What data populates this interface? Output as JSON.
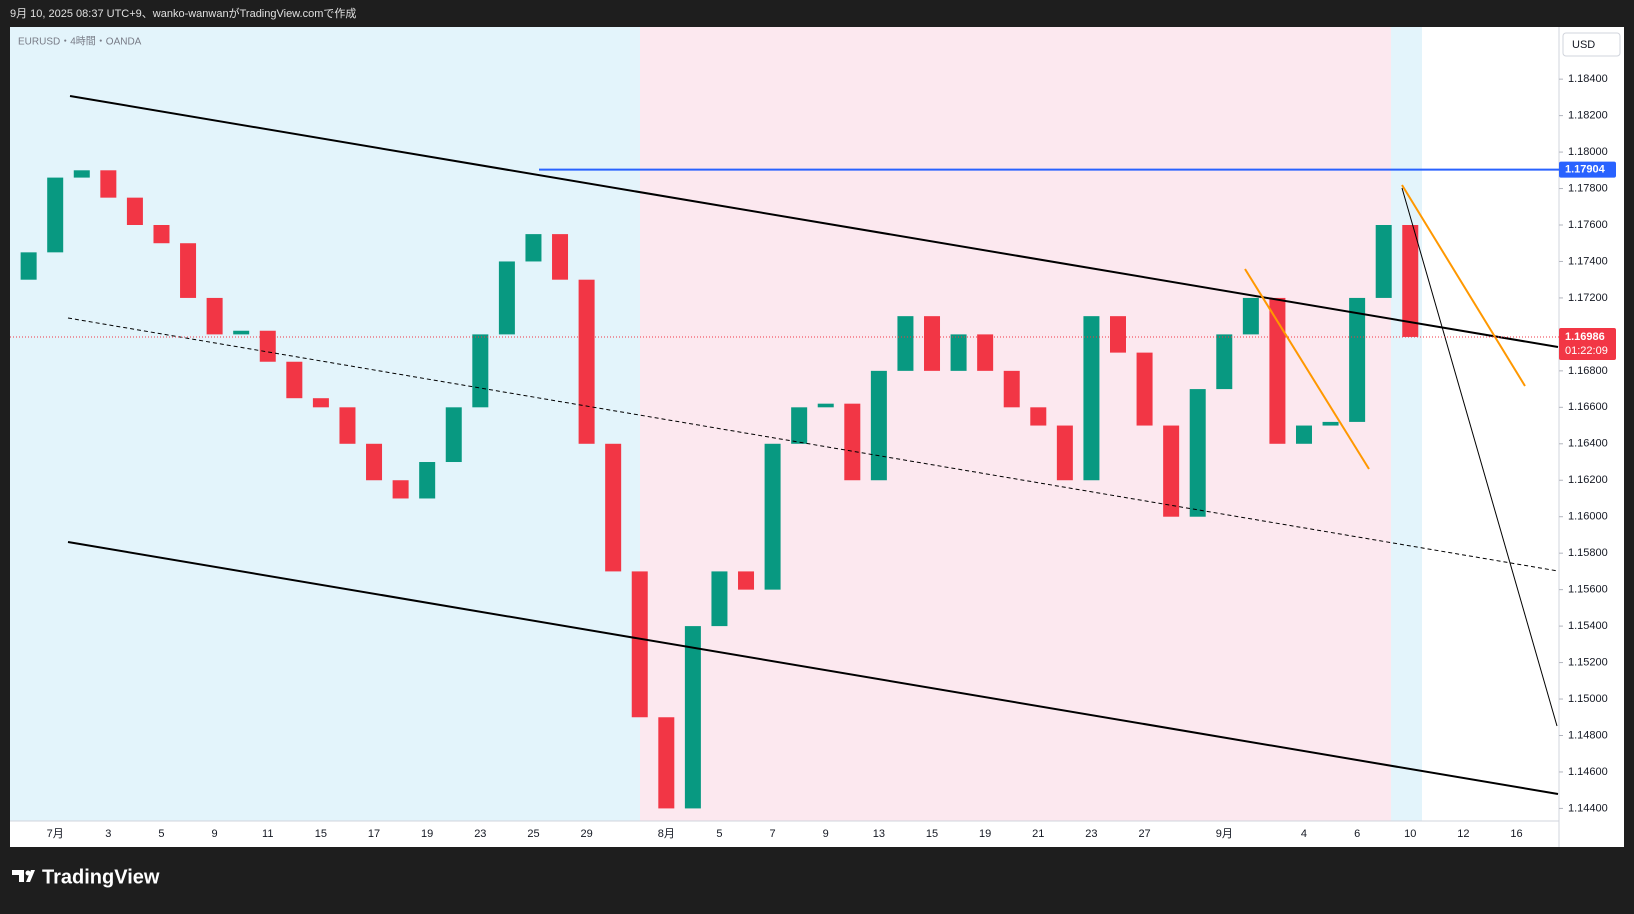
{
  "header": {
    "title": "9月 10, 2025 08:37 UTC+9、wanko-wanwanがTradingView.comで作成"
  },
  "footer": {
    "brand": "TradingView"
  },
  "chart_data": {
    "type": "candlestick",
    "title": "EURUSD・4時間・OANDA",
    "axis_unit": "USD",
    "categories": [
      null,
      "7月",
      null,
      "3",
      null,
      "5",
      null,
      "9",
      null,
      "11",
      null,
      "15",
      null,
      "17",
      null,
      "19",
      null,
      "23",
      null,
      "25",
      null,
      "29",
      null,
      null,
      "8月",
      null,
      "5",
      null,
      "7",
      null,
      "9",
      null,
      "13",
      null,
      "15",
      null,
      "19",
      null,
      "21",
      null,
      "23",
      null,
      "27",
      null,
      null,
      "9月",
      null,
      null,
      "4",
      null,
      "6",
      null,
      "10",
      null,
      "12",
      null,
      "16"
    ],
    "open": [
      1.173,
      1.1745,
      1.1786,
      1.179,
      1.1775,
      1.176,
      1.175,
      1.172,
      1.17,
      1.1702,
      1.1685,
      1.1665,
      1.166,
      1.164,
      1.162,
      1.161,
      1.163,
      1.166,
      1.17,
      1.174,
      1.1755,
      1.173,
      1.164,
      1.157,
      1.149,
      1.144,
      1.154,
      1.157,
      1.156,
      1.164,
      1.166,
      1.1662,
      1.162,
      1.168,
      1.171,
      1.168,
      1.17,
      1.168,
      1.166,
      1.165,
      1.162,
      1.171,
      1.169,
      1.165,
      1.16,
      1.167,
      1.17,
      1.172,
      1.164,
      1.165,
      1.1652,
      1.172,
      1.176,
      null,
      null,
      null,
      null
    ],
    "close": [
      1.1745,
      1.1786,
      1.179,
      1.1775,
      1.176,
      1.175,
      1.172,
      1.17,
      1.1702,
      1.1685,
      1.1665,
      1.166,
      1.164,
      1.162,
      1.161,
      1.163,
      1.166,
      1.17,
      1.174,
      1.1755,
      1.173,
      1.164,
      1.157,
      1.149,
      1.144,
      1.154,
      1.157,
      1.156,
      1.164,
      1.166,
      1.1662,
      1.162,
      1.168,
      1.171,
      1.168,
      1.17,
      1.168,
      1.166,
      1.165,
      1.162,
      1.171,
      1.169,
      1.165,
      1.16,
      1.167,
      1.17,
      1.172,
      1.164,
      1.165,
      1.1652,
      1.172,
      1.176,
      1.16986,
      null,
      null,
      null,
      null
    ],
    "up_color": "#089981",
    "down_color": "#f23645",
    "ylim": [
      1.14331,
      1.18686
    ],
    "yticks": [
      {
        "value": 1.184,
        "label": "1.18400"
      },
      {
        "value": 1.182,
        "label": "1.18200"
      },
      {
        "value": 1.18,
        "label": "1.18000"
      },
      {
        "value": 1.178,
        "label": "1.17800"
      },
      {
        "value": 1.176,
        "label": "1.17600"
      },
      {
        "value": 1.174,
        "label": "1.17400"
      },
      {
        "value": 1.172,
        "label": "1.17200"
      },
      {
        "value": 1.17,
        "label": "1.17000"
      },
      {
        "value": 1.168,
        "label": "1.16800"
      },
      {
        "value": 1.166,
        "label": "1.16600"
      },
      {
        "value": 1.164,
        "label": "1.16400"
      },
      {
        "value": 1.162,
        "label": "1.16200"
      },
      {
        "value": 1.16,
        "label": "1.16000"
      },
      {
        "value": 1.158,
        "label": "1.15800"
      },
      {
        "value": 1.156,
        "label": "1.15600"
      },
      {
        "value": 1.154,
        "label": "1.15400"
      },
      {
        "value": 1.152,
        "label": "1.15200"
      },
      {
        "value": 1.15,
        "label": "1.15000"
      },
      {
        "value": 1.148,
        "label": "1.14800"
      },
      {
        "value": 1.146,
        "label": "1.14600"
      },
      {
        "value": 1.144,
        "label": "1.14400"
      }
    ],
    "hline": 1.17904,
    "hline_color": "#2962ff",
    "last_price": 1.16986,
    "countdown": "01:22:09"
  }
}
